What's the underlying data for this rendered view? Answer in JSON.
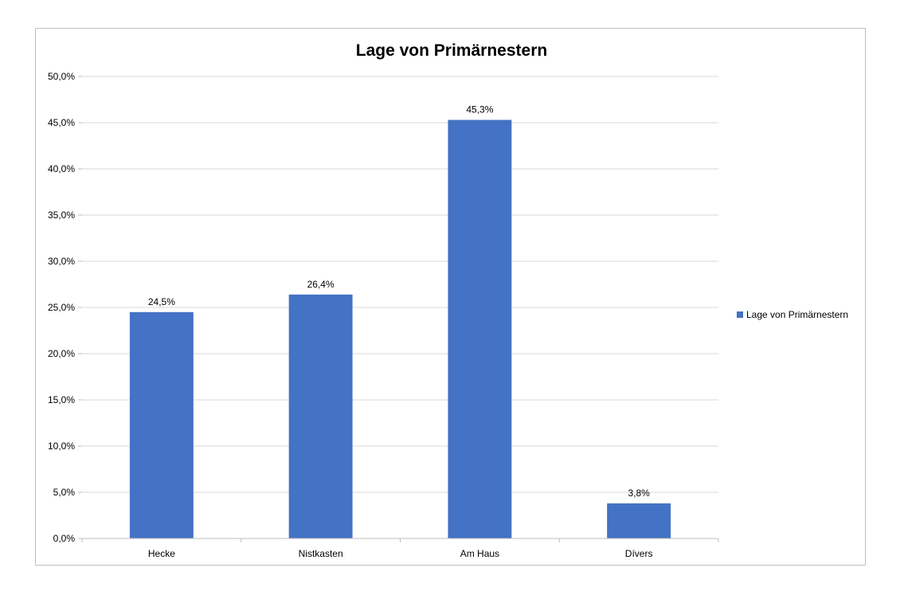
{
  "chart_data": {
    "type": "bar",
    "title": "Lage von Primärnestern",
    "categories": [
      "Hecke",
      "Nistkasten",
      "Am Haus",
      "Dívers"
    ],
    "series": [
      {
        "name": "Lage von Primärnestern",
        "values": [
          24.5,
          26.4,
          45.3,
          3.8
        ],
        "data_labels": [
          "24,5%",
          "26,4%",
          "45,3%",
          "3,8%"
        ],
        "color": "#4472C4"
      }
    ],
    "xlabel": "",
    "ylabel": "",
    "ylim": [
      0,
      50
    ],
    "yticks": [
      0,
      5,
      10,
      15,
      20,
      25,
      30,
      35,
      40,
      45,
      50
    ],
    "ytick_labels": [
      "0,0%",
      "5,0%",
      "10,0%",
      "15,0%",
      "20,0%",
      "25,0%",
      "30,0%",
      "35,0%",
      "40,0%",
      "45,0%",
      "50,0%"
    ],
    "grid": true,
    "legend_position": "right"
  }
}
